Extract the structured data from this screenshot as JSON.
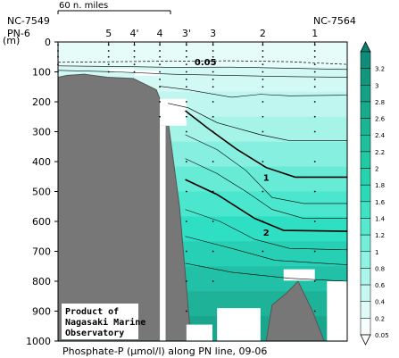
{
  "chart_data": {
    "type": "heatmap",
    "title": "Phosphate-P (μmol/l) along PN line, 09-06",
    "ylabel": "(m)",
    "ylim": [
      0,
      1000
    ],
    "y_ticks": [
      0,
      100,
      200,
      300,
      400,
      500,
      600,
      700,
      800,
      900,
      1000
    ],
    "scale_label": "60 n. miles",
    "end_labels": {
      "left": "NC-7549",
      "right": "NC-7564"
    },
    "stations": [
      {
        "label": "PN-6",
        "x": 0
      },
      {
        "label": "5",
        "x": 17.5
      },
      {
        "label": "4'",
        "x": 26.4
      },
      {
        "label": "4",
        "x": 35.2
      },
      {
        "label": "3'",
        "x": 44.4
      },
      {
        "label": "3",
        "x": 53.6
      },
      {
        "label": "2",
        "x": 70.8
      },
      {
        "label": "1",
        "x": 88.8
      }
    ],
    "colorbar_levels": [
      3.2,
      3,
      2.8,
      2.6,
      2.4,
      2.2,
      2,
      1.8,
      1.6,
      1.4,
      1.2,
      1,
      0.8,
      0.6,
      0.4,
      0.2,
      0.05
    ],
    "colorbar_colors": [
      "#0f8c7a",
      "#12977f",
      "#15a186",
      "#17ab8d",
      "#1ab594",
      "#1ebf9c",
      "#21c9a5",
      "#25d3ae",
      "#2bdbb8",
      "#3ee3c6",
      "#57e9d0",
      "#73eed9",
      "#8ff2e2",
      "#abf5ea",
      "#c6f8f1",
      "#e0fbf7",
      "#f6fefd"
    ],
    "contour_labels": [
      {
        "text": "0.05",
        "x": 51,
        "depth": 65
      },
      {
        "text": "1",
        "x": 72,
        "depth": 452
      },
      {
        "text": "2",
        "x": 72,
        "depth": 636
      }
    ],
    "note": "Product of\nNagasaki Marine\nObservatory"
  }
}
